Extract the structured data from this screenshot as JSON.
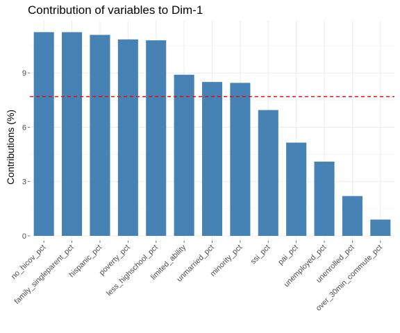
{
  "chart_data": {
    "type": "bar",
    "title": "Contribution of variables to Dim-1",
    "xlabel": "",
    "ylabel": "Contributions (%)",
    "categories": [
      "no_hicov_pct",
      "family_singleparent_pct",
      "hispanic_pct",
      "poverty_pct",
      "less_highschool_pct",
      "limited_ability",
      "unmarried_pct",
      "minority_pct",
      "ssi_pct",
      "pai_pct",
      "unemployed_pct",
      "unenrolled_pct",
      "over_30min_commute_pct"
    ],
    "values": [
      11.25,
      11.25,
      11.1,
      10.85,
      10.8,
      8.9,
      8.5,
      8.45,
      6.95,
      5.15,
      4.1,
      2.2,
      0.9
    ],
    "reference_line": 7.69,
    "ylim": [
      0,
      11.6
    ],
    "yticks": [
      0,
      3,
      6,
      9
    ],
    "grid": true,
    "colors": {
      "bar": "#4682b4",
      "reference_line": "#ff0000",
      "grid": "#ebebeb"
    }
  }
}
